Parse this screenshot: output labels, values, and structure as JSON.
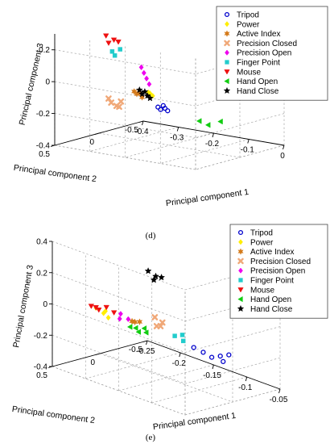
{
  "series_styles": [
    {
      "name": "Tripod",
      "color": "#0000cc",
      "marker": "circle"
    },
    {
      "name": "Power",
      "color": "#ffee00",
      "marker": "diamond"
    },
    {
      "name": "Active Index",
      "color": "#d47a1a",
      "marker": "star6"
    },
    {
      "name": "Precision Closed",
      "color": "#f0a878",
      "marker": "x"
    },
    {
      "name": "Precision Open",
      "color": "#ee00ee",
      "marker": "diamond"
    },
    {
      "name": "Finger Point",
      "color": "#22cccc",
      "marker": "square"
    },
    {
      "name": "Mouse",
      "color": "#ee1111",
      "marker": "triangle-down"
    },
    {
      "name": "Hand Open",
      "color": "#11cc11",
      "marker": "triangle-left"
    },
    {
      "name": "Hand Close",
      "color": "#000000",
      "marker": "star5"
    }
  ],
  "chart_data": [
    {
      "type": "scatter",
      "panel_label": "(d)",
      "xlabel": "Principal component 1",
      "ylabel": "Principal component 2",
      "zlabel": "Principal component 3",
      "x_ticks": [
        "-0.4",
        "-0.3",
        "-0.2",
        "-0.1",
        "0"
      ],
      "y_ticks": [
        "-0.5",
        "0",
        "0.5"
      ],
      "z_ticks": [
        "-0.4",
        "-0.2",
        "0",
        "0.2"
      ],
      "xlim": [
        -0.4,
        0
      ],
      "ylim": [
        -0.5,
        0.5
      ],
      "zlim": [
        -0.4,
        0.3
      ],
      "legend_position": "top-right",
      "legend": [
        "Tripod",
        "Power",
        "Active Index",
        "Precision Closed",
        "Precision Open",
        "Finger Point",
        "Mouse",
        "Hand Open",
        "Hand Close"
      ],
      "series": [
        {
          "name": "Tripod",
          "points": [
            [
              -0.22,
              0.05,
              -0.16
            ],
            [
              -0.21,
              0.06,
              -0.17
            ],
            [
              -0.2,
              0.05,
              -0.16
            ],
            [
              -0.19,
              0.06,
              -0.17
            ],
            [
              -0.21,
              0.03,
              -0.15
            ]
          ]
        },
        {
          "name": "Power",
          "points": [
            [
              -0.26,
              -0.02,
              -0.1
            ],
            [
              -0.25,
              -0.01,
              -0.11
            ],
            [
              -0.26,
              0.0,
              -0.09
            ]
          ]
        },
        {
          "name": "Active Index",
          "points": [
            [
              -0.28,
              0.05,
              -0.1
            ],
            [
              -0.27,
              0.06,
              -0.09
            ],
            [
              -0.26,
              0.07,
              -0.11
            ],
            [
              -0.28,
              0.08,
              -0.08
            ]
          ]
        },
        {
          "name": "Precision Closed",
          "points": [
            [
              -0.3,
              0.2,
              -0.16
            ],
            [
              -0.31,
              0.22,
              -0.14
            ],
            [
              -0.29,
              0.19,
              -0.13
            ],
            [
              -0.3,
              0.17,
              -0.17
            ],
            [
              -0.32,
              0.21,
              -0.12
            ]
          ]
        },
        {
          "name": "Precision Open",
          "points": [
            [
              -0.3,
              -0.08,
              0.04
            ],
            [
              -0.29,
              -0.07,
              0.01
            ],
            [
              -0.28,
              -0.06,
              -0.02
            ],
            [
              -0.27,
              -0.05,
              -0.05
            ]
          ]
        },
        {
          "name": "Finger Point",
          "points": [
            [
              -0.35,
              0.05,
              0.14
            ],
            [
              -0.34,
              0.06,
              0.12
            ],
            [
              -0.33,
              0.04,
              0.16
            ]
          ]
        },
        {
          "name": "Mouse",
          "points": [
            [
              -0.36,
              0.08,
              0.24
            ],
            [
              -0.34,
              0.07,
              0.22
            ],
            [
              -0.35,
              0.09,
              0.2
            ],
            [
              -0.33,
              0.06,
              0.21
            ]
          ]
        },
        {
          "name": "Hand Open",
          "points": [
            [
              -0.14,
              -0.1,
              -0.24
            ],
            [
              -0.12,
              -0.12,
              -0.26
            ],
            [
              -0.1,
              -0.18,
              -0.24
            ]
          ]
        },
        {
          "name": "Hand Close",
          "points": [
            [
              -0.28,
              0.02,
              -0.08
            ],
            [
              -0.27,
              0.03,
              -0.1
            ],
            [
              -0.26,
              0.01,
              -0.11
            ],
            [
              -0.27,
              0.0,
              -0.09
            ],
            [
              -0.25,
              0.02,
              -0.12
            ]
          ]
        }
      ]
    },
    {
      "type": "scatter",
      "panel_label": "(e)",
      "xlabel": "Principal component 1",
      "ylabel": "Principal component 2",
      "zlabel": "Principal component 3",
      "x_ticks": [
        "-0.25",
        "-0.2",
        "-0.15",
        "-0.1",
        "-0.05"
      ],
      "y_ticks": [
        "-0.5",
        "0",
        "0.5"
      ],
      "z_ticks": [
        "-0.4",
        "-0.2",
        "0",
        "0.2",
        "0.4"
      ],
      "xlim": [
        -0.25,
        -0.05
      ],
      "ylim": [
        -0.5,
        0.5
      ],
      "zlim": [
        -0.4,
        0.4
      ],
      "legend_position": "top-right",
      "legend": [
        "Tripod",
        "Power",
        "Active Index",
        "Precision Closed",
        "Precision Open",
        "Finger Point",
        "Mouse",
        "Hand Open",
        "Hand Close"
      ],
      "series": [
        {
          "name": "Tripod",
          "points": [
            [
              -0.13,
              -0.15,
              -0.2
            ],
            [
              -0.12,
              -0.18,
              -0.22
            ],
            [
              -0.11,
              -0.2,
              -0.24
            ],
            [
              -0.1,
              -0.22,
              -0.22
            ],
            [
              -0.09,
              -0.24,
              -0.2
            ],
            [
              -0.1,
              -0.25,
              -0.26
            ]
          ]
        },
        {
          "name": "Power",
          "points": [
            [
              -0.22,
              0.25,
              -0.02
            ],
            [
              -0.21,
              0.24,
              -0.04
            ],
            [
              -0.2,
              0.26,
              -0.05
            ],
            [
              -0.21,
              0.22,
              -0.03
            ]
          ]
        },
        {
          "name": "Active Index",
          "points": [
            [
              -0.18,
              0.15,
              -0.06
            ],
            [
              -0.17,
              0.14,
              -0.05
            ],
            [
              -0.18,
              0.12,
              -0.07
            ]
          ]
        },
        {
          "name": "Precision Closed",
          "points": [
            [
              -0.16,
              0.05,
              -0.02
            ],
            [
              -0.15,
              0.04,
              -0.04
            ],
            [
              -0.15,
              0.06,
              -0.06
            ],
            [
              -0.16,
              0.03,
              -0.08
            ]
          ]
        },
        {
          "name": "Precision Open",
          "points": [
            [
              -0.19,
              0.2,
              -0.02
            ],
            [
              -0.18,
              0.19,
              -0.04
            ],
            [
              -0.19,
              0.21,
              -0.05
            ]
          ]
        },
        {
          "name": "Finger Point",
          "points": [
            [
              -0.14,
              -0.02,
              -0.12
            ],
            [
              -0.13,
              -0.04,
              -0.14
            ],
            [
              -0.13,
              -0.03,
              -0.1
            ]
          ]
        },
        {
          "name": "Mouse",
          "points": [
            [
              -0.22,
              0.3,
              0.0
            ],
            [
              -0.21,
              0.29,
              -0.01
            ],
            [
              -0.2,
              0.28,
              0.02
            ],
            [
              -0.21,
              0.32,
              0.01
            ],
            [
              -0.19,
              0.27,
              0.0
            ]
          ]
        },
        {
          "name": "Hand Open",
          "points": [
            [
              -0.19,
              0.1,
              -0.12
            ],
            [
              -0.18,
              0.08,
              -0.14
            ],
            [
              -0.17,
              0.09,
              -0.1
            ],
            [
              -0.18,
              0.11,
              -0.11
            ],
            [
              -0.17,
              0.07,
              -0.13
            ]
          ]
        },
        {
          "name": "Hand Close",
          "points": [
            [
              -0.17,
              0.05,
              0.26
            ],
            [
              -0.16,
              0.04,
              0.24
            ],
            [
              -0.16,
              0.06,
              0.22
            ],
            [
              -0.15,
              0.05,
              0.25
            ]
          ]
        }
      ]
    }
  ]
}
